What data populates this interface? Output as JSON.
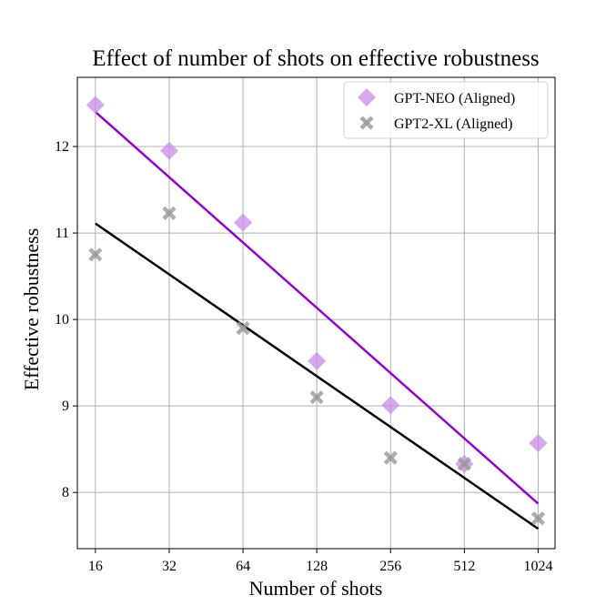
{
  "chart_data": {
    "type": "scatter",
    "title": "Effect of number of shots on effective robustness",
    "xlabel": "Number of shots",
    "ylabel": "Effective robustness",
    "x_scale": "log2",
    "x_ticks": [
      "16",
      "32",
      "64",
      "128",
      "256",
      "512",
      "1024"
    ],
    "y_ticks": [
      "8",
      "9",
      "10",
      "11",
      "12"
    ],
    "xlim": [
      13.5,
      1200
    ],
    "ylim": [
      7.35,
      12.8
    ],
    "grid": true,
    "legend_position": "top-right",
    "series": [
      {
        "name": "GPT-NEO (Aligned)",
        "marker": "diamond",
        "color": "#c98be9",
        "line_color": "#9400d3",
        "x": [
          16,
          32,
          64,
          128,
          256,
          512,
          1024
        ],
        "y": [
          12.48,
          11.95,
          11.12,
          9.52,
          9.01,
          8.33,
          8.57
        ],
        "fit": [
          [
            16,
            12.4
          ],
          [
            1024,
            7.87
          ]
        ]
      },
      {
        "name": "GPT2-XL (Aligned)",
        "marker": "x",
        "color": "#999999",
        "line_color": "#000000",
        "x": [
          16,
          32,
          64,
          128,
          256,
          512,
          1024
        ],
        "y": [
          10.75,
          11.23,
          9.9,
          9.1,
          8.4,
          8.33,
          7.7
        ],
        "fit": [
          [
            16,
            11.11
          ],
          [
            1024,
            7.58
          ]
        ]
      }
    ]
  }
}
